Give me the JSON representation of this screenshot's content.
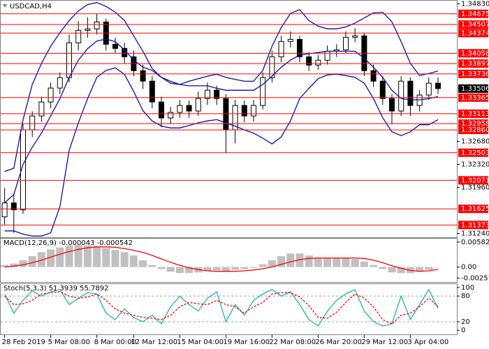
{
  "chart_data": [
    {
      "type": "candlestick",
      "title": "USDCAD,H4",
      "categories": [
        "28 Feb 2019",
        null,
        null,
        null,
        null,
        "5 Mar 08:00",
        null,
        null,
        null,
        null,
        "8 Mar 00:00",
        null,
        null,
        null,
        "12 Mar 12:00",
        null,
        null,
        null,
        null,
        "15 Mar 04:00",
        null,
        null,
        null,
        null,
        "19 Mar 16:00",
        null,
        null,
        null,
        null,
        "22 Mar 08:00",
        null,
        null,
        null,
        null,
        "26 Mar 20:00",
        null,
        null,
        null,
        null,
        "29 Mar 12:00",
        null,
        null,
        null,
        null,
        "3 Apr 04:00",
        null,
        null,
        null
      ],
      "open": [
        1.315,
        1.31718,
        1.3161,
        1.32861,
        1.33078,
        1.33296,
        1.33514,
        1.33677,
        1.34221,
        1.34417,
        1.34438,
        1.34547,
        1.34199,
        1.34134,
        1.34003,
        1.33786,
        1.33622,
        1.33296,
        1.33046,
        1.33133,
        1.33242,
        1.33155,
        1.3335,
        1.33481,
        1.3335,
        1.32861,
        1.33242,
        1.33078,
        1.33242,
        1.33677,
        1.34003,
        1.34243,
        1.34275,
        1.34003,
        1.33873,
        1.33949,
        1.3409,
        1.34112,
        1.34308,
        1.3433,
        1.33786,
        1.33622,
        1.3335,
        1.33155,
        1.33622,
        1.33242,
        1.33405,
        1.3359
      ],
      "high": [
        1.3195,
        1.3185,
        1.3295,
        1.3315,
        1.3338,
        1.336,
        1.3376,
        1.3435,
        1.3456,
        1.3462,
        1.3468,
        1.346,
        1.343,
        1.3422,
        1.341,
        1.3388,
        1.337,
        1.3338,
        1.3322,
        1.3333,
        1.3332,
        1.3346,
        1.336,
        1.3355,
        1.3342,
        1.3333,
        1.3332,
        1.3333,
        1.3376,
        1.341,
        1.3433,
        1.344,
        1.3433,
        1.3408,
        1.3403,
        1.3418,
        1.342,
        1.344,
        1.3445,
        1.3438,
        1.3388,
        1.337,
        1.3342,
        1.337,
        1.3368,
        1.3348,
        1.3368,
        1.3368
      ],
      "low": [
        1.3138,
        1.3125,
        1.3155,
        1.3275,
        1.3299,
        1.332,
        1.3342,
        1.336,
        1.341,
        1.343,
        1.3435,
        1.341,
        1.3405,
        1.339,
        1.337,
        1.335,
        1.332,
        1.329,
        1.3295,
        1.3305,
        1.3305,
        1.3308,
        1.3325,
        1.3325,
        1.325,
        1.3265,
        1.3298,
        1.3299,
        1.3318,
        1.336,
        1.3392,
        1.3415,
        1.3392,
        1.3378,
        1.338,
        1.3388,
        1.34,
        1.3405,
        1.3423,
        1.337,
        1.3353,
        1.3325,
        1.3295,
        1.3308,
        1.3308,
        1.3315,
        1.3333,
        1.3342
      ],
      "close": [
        1.31718,
        1.3161,
        1.32861,
        1.33078,
        1.33296,
        1.33514,
        1.33677,
        1.34221,
        1.34417,
        1.34438,
        1.34547,
        1.34199,
        1.34134,
        1.34003,
        1.33786,
        1.33622,
        1.33296,
        1.33046,
        1.33133,
        1.33242,
        1.33155,
        1.3335,
        1.33481,
        1.3335,
        1.32861,
        1.33242,
        1.33078,
        1.33242,
        1.33677,
        1.34003,
        1.34243,
        1.34275,
        1.34003,
        1.33873,
        1.33949,
        1.3409,
        1.34112,
        1.34308,
        1.3433,
        1.33786,
        1.33622,
        1.3335,
        1.33155,
        1.33622,
        1.33242,
        1.33405,
        1.3359,
        1.33506
      ],
      "bands": {
        "color": "#0c0ca8",
        "upper": [
          1.3221,
          1.3226,
          1.3302,
          1.3357,
          1.339,
          1.3417,
          1.3438,
          1.3457,
          1.3472,
          1.3482,
          1.3485,
          1.3479,
          1.347,
          1.3457,
          1.3433,
          1.3409,
          1.3382,
          1.3368,
          1.3359,
          1.3357,
          1.3362,
          1.3366,
          1.337,
          1.3373,
          1.3368,
          1.3365,
          1.3362,
          1.3362,
          1.3379,
          1.3417,
          1.3446,
          1.3468,
          1.3474,
          1.3457,
          1.3448,
          1.3444,
          1.3444,
          1.3447,
          1.3453,
          1.3461,
          1.3469,
          1.347,
          1.3455,
          1.3424,
          1.339,
          1.3371,
          1.3374,
          1.3378
        ],
        "middle": [
          1.3172,
          1.3185,
          1.3232,
          1.3259,
          1.3281,
          1.3308,
          1.3335,
          1.3368,
          1.3395,
          1.3413,
          1.3425,
          1.3428,
          1.3424,
          1.3411,
          1.3395,
          1.3384,
          1.3379,
          1.3368,
          1.3362,
          1.3357,
          1.3355,
          1.3355,
          1.3355,
          1.3351,
          1.3348,
          1.3348,
          1.3348,
          1.3348,
          1.3357,
          1.337,
          1.3384,
          1.3395,
          1.3403,
          1.3405,
          1.3407,
          1.3409,
          1.3409,
          1.3409,
          1.3409,
          1.3398,
          1.3384,
          1.3368,
          1.3348,
          1.3335,
          1.3333,
          1.3333,
          1.3335,
          1.3338
        ],
        "lower": [
          1.3128,
          1.3128,
          1.3123,
          1.312,
          1.312,
          1.3125,
          1.3166,
          1.3254,
          1.3297,
          1.3335,
          1.3368,
          1.3379,
          1.3383,
          1.3373,
          1.3346,
          1.3316,
          1.33,
          1.3292,
          1.3289,
          1.3289,
          1.3293,
          1.3297,
          1.33,
          1.3302,
          1.3297,
          1.3292,
          1.3286,
          1.3281,
          1.3273,
          1.3264,
          1.3275,
          1.33,
          1.3335,
          1.3351,
          1.3366,
          1.3372,
          1.3373,
          1.3371,
          1.3368,
          1.3359,
          1.3335,
          1.3305,
          1.3283,
          1.3277,
          1.3283,
          1.3294,
          1.3294,
          1.3302
        ]
      },
      "ylim": [
        1.3118,
        1.3488
      ],
      "yticks": [
        {
          "value": 1.3483,
          "label": "1.34830"
        },
        {
          "value": 1.3268,
          "label": "1.32680"
        },
        {
          "value": 1.3232,
          "label": "1.32320"
        },
        {
          "value": 1.3196,
          "label": "1.31960"
        },
        {
          "value": 1.3124,
          "label": "1.31240"
        }
      ],
      "levels": [
        1.34675,
        1.34507,
        1.34374,
        1.34058,
        1.33897,
        1.33736,
        1.33365,
        1.33113,
        1.32958,
        {
          "value": 1.3286,
          "label": "1.32860"
        },
        1.32503,
        1.32071,
        1.31625,
        1.31373
      ],
      "level_color": "#ff0000",
      "last_price": 1.33506,
      "up_color": "#ffffff",
      "down_color": "#000000"
    },
    {
      "type": "bar",
      "title": "MACD(12,26,9) -0.000043 -0.000542",
      "histogram": {
        "color": "#c0c0c0",
        "values": [
          0.00047,
          0.00079,
          0.00157,
          0.00252,
          0.00346,
          0.00409,
          0.00456,
          0.00504,
          0.00519,
          0.00504,
          0.00488,
          0.00441,
          0.00394,
          0.00346,
          0.00268,
          0.00157,
          0.00047,
          -0.00047,
          -0.0011,
          -0.00142,
          -0.00142,
          -0.00126,
          -0.00094,
          -0.00079,
          -0.00094,
          -0.00063,
          -0.00047,
          -0.00016,
          0.00063,
          0.00157,
          0.00252,
          0.00315,
          0.00315,
          0.00268,
          0.0022,
          0.00205,
          0.00205,
          0.00205,
          0.00189,
          0.00126,
          0.00047,
          -0.00047,
          -0.00126,
          -0.00142,
          -0.00142,
          -0.0011,
          -0.00063,
          -4.3e-05
        ]
      },
      "signal": {
        "color": "#ff0000",
        "values": [
          0,
          0.0002,
          0.0005,
          0.001,
          0.0016,
          0.0023,
          0.003,
          0.0036,
          0.0041,
          0.0045,
          0.0047,
          0.0047,
          0.0046,
          0.0043,
          0.0039,
          0.0034,
          0.0027,
          0.0019,
          0.0011,
          0.0004,
          -0.0002,
          -0.0006,
          -0.0009,
          -0.001,
          -0.001,
          -0.001,
          -0.0009,
          -0.0007,
          -0.0004,
          0,
          0.0006,
          0.0012,
          0.0017,
          0.002,
          0.0021,
          0.0021,
          0.0021,
          0.0021,
          0.0021,
          0.002,
          0.0016,
          0.001,
          0.0003,
          -0.0003,
          -0.0008,
          -0.001,
          -0.0009,
          -0.000542
        ]
      },
      "ylim": [
        -0.0035,
        0.0066
      ],
      "yticks": [
        0.005824,
        {
          "value": 0,
          "label": "0.00"
        },
        -0.002579
      ]
    },
    {
      "type": "line",
      "title": "Stoch(5,3,3) 51.3939 55.7892",
      "main": {
        "color": "#20b2aa",
        "values": [
          85,
          40,
          70,
          92,
          80,
          90,
          95,
          60,
          75,
          88,
          85,
          40,
          25,
          50,
          30,
          20,
          35,
          15,
          55,
          80,
          60,
          45,
          75,
          90,
          20,
          60,
          35,
          70,
          85,
          95,
          80,
          90,
          60,
          25,
          10,
          45,
          70,
          85,
          95,
          45,
          20,
          10,
          15,
          80,
          25,
          60,
          95,
          51.3939
        ]
      },
      "signal": {
        "color": "#ff0000",
        "dashed": true,
        "values": [
          80,
          60,
          62,
          70,
          85,
          88,
          90,
          80,
          75,
          78,
          85,
          70,
          50,
          40,
          35,
          30,
          28,
          25,
          35,
          55,
          65,
          62,
          60,
          70,
          60,
          55,
          40,
          55,
          65,
          85,
          88,
          88,
          78,
          58,
          30,
          28,
          42,
          65,
          85,
          75,
          55,
          25,
          15,
          35,
          40,
          55,
          75,
          55.7892
        ]
      },
      "ylim": [
        -9.5,
        108
      ],
      "yticks": [
        100,
        80,
        20,
        0
      ],
      "levels": [
        80,
        20
      ]
    }
  ]
}
